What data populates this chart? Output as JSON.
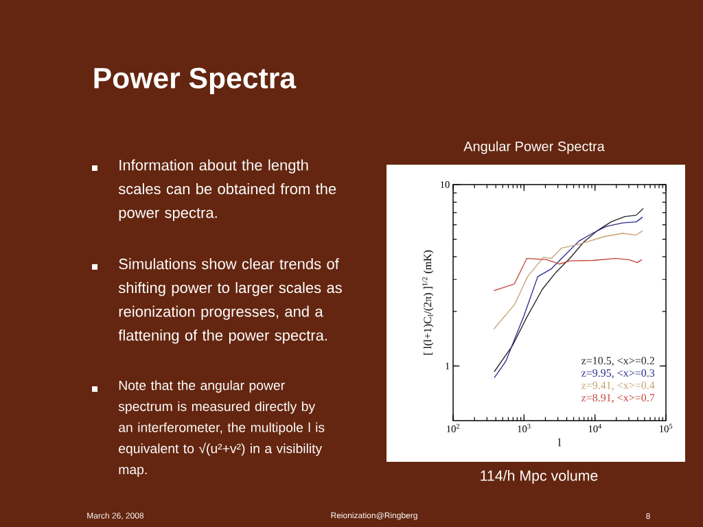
{
  "chart_data": {
    "type": "line",
    "title": "Power Spectra",
    "subtitle": "Angular Power Spectra",
    "xlabel": "l",
    "ylabel": "[ l(l+1)C$_{l}$/(2π) ]$^{1/2}$ (mK)",
    "log": "xy",
    "xlim": [
      100,
      100000
    ],
    "ylim": [
      0.5,
      10
    ],
    "xticks": [
      {
        "value": 100,
        "label": "10$^{2}$"
      },
      {
        "value": 1000,
        "label": "10$^{3}$"
      },
      {
        "value": 10000,
        "label": "10$^{4}$"
      },
      {
        "value": 100000,
        "label": "10$^{5}$"
      }
    ],
    "yticks": [
      1,
      10
    ],
    "grid": false,
    "legend": "bottom right",
    "marker": "none",
    "line_style": "solid",
    "series": [
      {
        "name": "z=10.5, <x>=0.2",
        "color": "#222222",
        "x": [
          380,
          690,
          1080,
          1810,
          2830,
          4420,
          6900,
          10700,
          16800,
          26300,
          38100,
          47900
        ],
        "values": [
          0.93,
          1.3,
          1.84,
          2.65,
          3.29,
          3.92,
          4.81,
          5.56,
          6.23,
          6.66,
          6.78,
          7.39
        ]
      },
      {
        "name": "z=9.95, <x>=0.3",
        "color": "#2a2a8a",
        "x": [
          380,
          552,
          1000,
          1560,
          2440,
          3530,
          5940,
          9290,
          14500,
          24400,
          38100,
          46800
        ],
        "values": [
          0.86,
          1.06,
          1.9,
          3.11,
          3.44,
          3.98,
          4.88,
          5.4,
          5.89,
          6.15,
          6.23,
          6.62
        ]
      },
      {
        "name": "z=9.41, <x>=0.4",
        "color": "#c8a070",
        "x": [
          375,
          740,
          1120,
          1880,
          2440,
          3390,
          4420,
          6450,
          13500,
          24400,
          38100,
          46800
        ],
        "values": [
          1.6,
          2.19,
          3.11,
          3.98,
          3.92,
          4.47,
          4.56,
          4.73,
          5.17,
          5.39,
          5.27,
          5.56
        ]
      },
      {
        "name": "z=8.91, <x>=0.7",
        "color": "#c0453a",
        "x": [
          375,
          727,
          1094,
          2090,
          3160,
          4420,
          9290,
          19500,
          30000,
          39500,
          45700
        ],
        "values": [
          2.6,
          2.83,
          3.92,
          3.86,
          3.65,
          3.8,
          3.82,
          3.92,
          3.86,
          3.72,
          3.86
        ]
      }
    ],
    "annotations": [
      "Information about the length scales can be obtained from the power spectra.",
      "Simulations show clear trends of shifting power to larger scales as reionization progresses, and a flattening of the power spectra.",
      "Note that the angular power spectrum is measured directly by an interferometer, the multipole l is equivalent to √(u²+v²) in a visibility map.",
      "114/h Mpc volume",
      "March 26, 2008",
      "Reionization@Ringberg",
      "8"
    ]
  }
}
